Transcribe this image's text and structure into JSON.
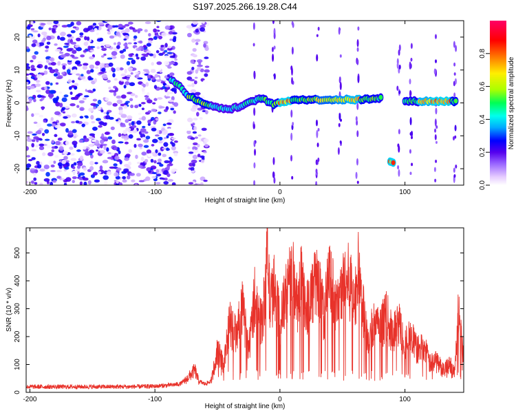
{
  "figure": {
    "title": "S197.2025.266.19.28.C44"
  },
  "chart_data": [
    {
      "type": "heatmap",
      "panel": "spectrogram",
      "xlabel": "Height of straight line (km)",
      "ylabel": "Frequency (Hz)",
      "xlim": [
        -203,
        147
      ],
      "ylim": [
        -25,
        25
      ],
      "x_ticks": [
        -200,
        -100,
        0,
        100
      ],
      "y_ticks": [
        -20,
        -10,
        0,
        10,
        20
      ],
      "colorbar": {
        "label": "Normalized spectral amplitude",
        "range": [
          0.0,
          1.0
        ],
        "ticks": [
          0.0,
          0.2,
          0.4,
          0.6,
          0.8
        ],
        "colormap": [
          "#ffffff",
          "#e6ccff",
          "#9966ff",
          "#5500ee",
          "#0000ff",
          "#00aaff",
          "#00ffee",
          "#00ff55",
          "#aaff00",
          "#ffee00",
          "#ff7700",
          "#ff0000",
          "#ff0066"
        ]
      },
      "noise_regions": [
        {
          "x_range": [
            -203,
            -83
          ],
          "amplitude": 0.3
        },
        {
          "x_range": [
            -73,
            -58
          ],
          "amplitude": 0.25
        }
      ],
      "signal_trace": [
        {
          "x": -87,
          "f": 7,
          "amp": 0.5
        },
        {
          "x": -80,
          "f": 5,
          "amp": 0.5
        },
        {
          "x": -73,
          "f": 2,
          "amp": 0.6
        },
        {
          "x": -55,
          "f": -1,
          "amp": 0.45
        },
        {
          "x": -40,
          "f": -2,
          "amp": 0.45
        },
        {
          "x": -28,
          "f": -0.5,
          "amp": 0.5
        },
        {
          "x": -15,
          "f": 1.5,
          "amp": 0.55
        },
        {
          "x": -5,
          "f": -0.5,
          "amp": 0.6
        },
        {
          "x": 0,
          "f": 0,
          "amp": 0.85
        },
        {
          "x": 10,
          "f": 1,
          "amp": 0.6
        },
        {
          "x": 20,
          "f": 1,
          "amp": 0.6
        },
        {
          "x": 30,
          "f": 1,
          "amp": 0.7
        },
        {
          "x": 45,
          "f": 1,
          "amp": 0.75
        },
        {
          "x": 55,
          "f": 1,
          "amp": 0.8
        },
        {
          "x": 65,
          "f": 1,
          "amp": 0.6
        },
        {
          "x": 78,
          "f": 1.5,
          "amp": 0.55
        },
        {
          "x": 88,
          "f": -18,
          "amp": 0.85
        },
        {
          "x": 100,
          "f": 0.5,
          "amp": 0.55
        },
        {
          "x": 112,
          "f": 0.5,
          "amp": 0.8
        },
        {
          "x": 122,
          "f": 0.5,
          "amp": 0.85
        },
        {
          "x": 138,
          "f": 0.5,
          "amp": 0.6
        }
      ]
    },
    {
      "type": "line",
      "panel": "snr",
      "xlabel": "Height of straight line (km)",
      "ylabel": "SNR (10 * v/v)",
      "xlim": [
        -203,
        147
      ],
      "ylim": [
        0,
        590
      ],
      "x_ticks": [
        -200,
        -100,
        0,
        100
      ],
      "y_ticks": [
        0,
        100,
        200,
        300,
        400,
        500
      ],
      "color": "#e8322a",
      "series": [
        {
          "x": [
            -203,
            -180,
            -160,
            -140,
            -120,
            -100,
            -90,
            -80,
            -75,
            -70,
            -68,
            -65,
            -60,
            -55,
            -50,
            -45,
            -40,
            -35,
            -30,
            -25,
            -20,
            -15,
            -12,
            -10,
            -8,
            -5,
            0,
            5,
            10,
            15,
            17,
            20,
            25,
            30,
            35,
            40,
            45,
            50,
            55,
            60,
            63,
            65,
            68,
            70,
            75,
            80,
            85,
            90,
            95,
            100,
            105,
            110,
            115,
            120,
            125,
            130,
            135,
            140,
            143,
            147
          ],
          "y": [
            20,
            20,
            20,
            20,
            20,
            22,
            25,
            30,
            45,
            70,
            80,
            40,
            30,
            40,
            150,
            100,
            250,
            200,
            300,
            150,
            350,
            250,
            330,
            590,
            300,
            380,
            250,
            350,
            420,
            300,
            460,
            300,
            350,
            400,
            280,
            420,
            300,
            380,
            400,
            330,
            440,
            350,
            250,
            180,
            250,
            220,
            280,
            200,
            250,
            180,
            200,
            150,
            170,
            100,
            120,
            80,
            100,
            80,
            320,
            120
          ]
        }
      ]
    }
  ]
}
